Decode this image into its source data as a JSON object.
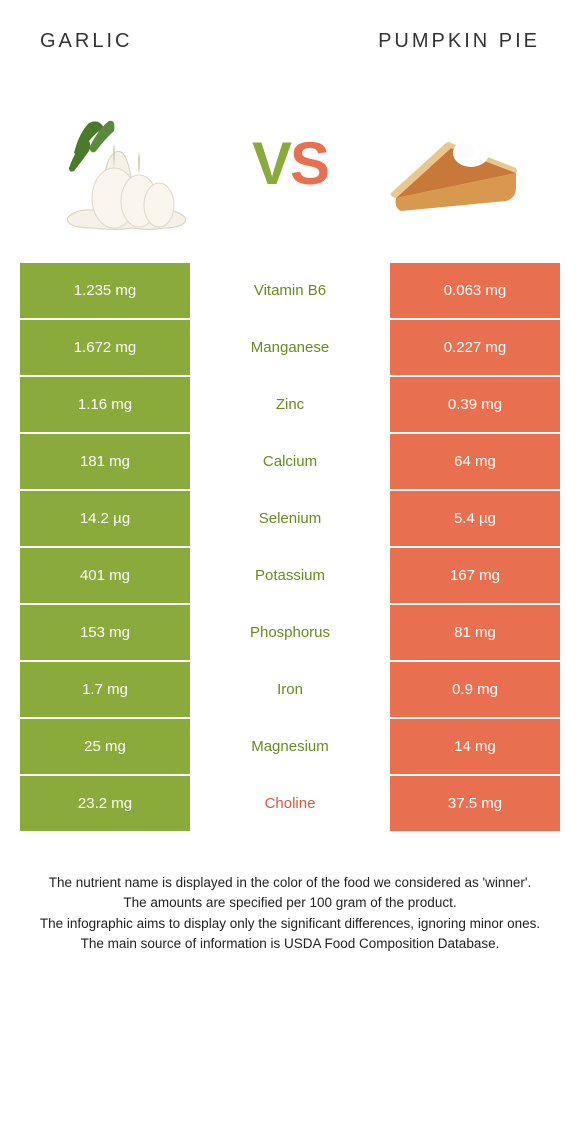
{
  "header": {
    "left_title": "GARLIC",
    "right_title": "PUMPKIN PIE"
  },
  "vs": {
    "v": "V",
    "s": "S"
  },
  "colors": {
    "green": "#8aaa3b",
    "orange": "#e87050",
    "green_text": "#6a8a1f",
    "orange_text": "#d85838"
  },
  "nutrients": [
    {
      "left": "1.235 mg",
      "name": "Vitamin B6",
      "right": "0.063 mg",
      "winner": "green"
    },
    {
      "left": "1.672 mg",
      "name": "Manganese",
      "right": "0.227 mg",
      "winner": "green"
    },
    {
      "left": "1.16 mg",
      "name": "Zinc",
      "right": "0.39 mg",
      "winner": "green"
    },
    {
      "left": "181 mg",
      "name": "Calcium",
      "right": "64 mg",
      "winner": "green"
    },
    {
      "left": "14.2 µg",
      "name": "Selenium",
      "right": "5.4 µg",
      "winner": "green"
    },
    {
      "left": "401 mg",
      "name": "Potassium",
      "right": "167 mg",
      "winner": "green"
    },
    {
      "left": "153 mg",
      "name": "Phosphorus",
      "right": "81 mg",
      "winner": "green"
    },
    {
      "left": "1.7 mg",
      "name": "Iron",
      "right": "0.9 mg",
      "winner": "green"
    },
    {
      "left": "25 mg",
      "name": "Magnesium",
      "right": "14 mg",
      "winner": "green"
    },
    {
      "left": "23.2 mg",
      "name": "Choline",
      "right": "37.5 mg",
      "winner": "orange"
    }
  ],
  "footnotes": {
    "line1": "The nutrient name is displayed in the color of the food we considered as 'winner'.",
    "line2": "The amounts are specified per 100 gram of the product.",
    "line3": "The infographic aims to display only the significant differences, ignoring minor ones.",
    "line4": "The main source of information is USDA Food Composition Database."
  }
}
